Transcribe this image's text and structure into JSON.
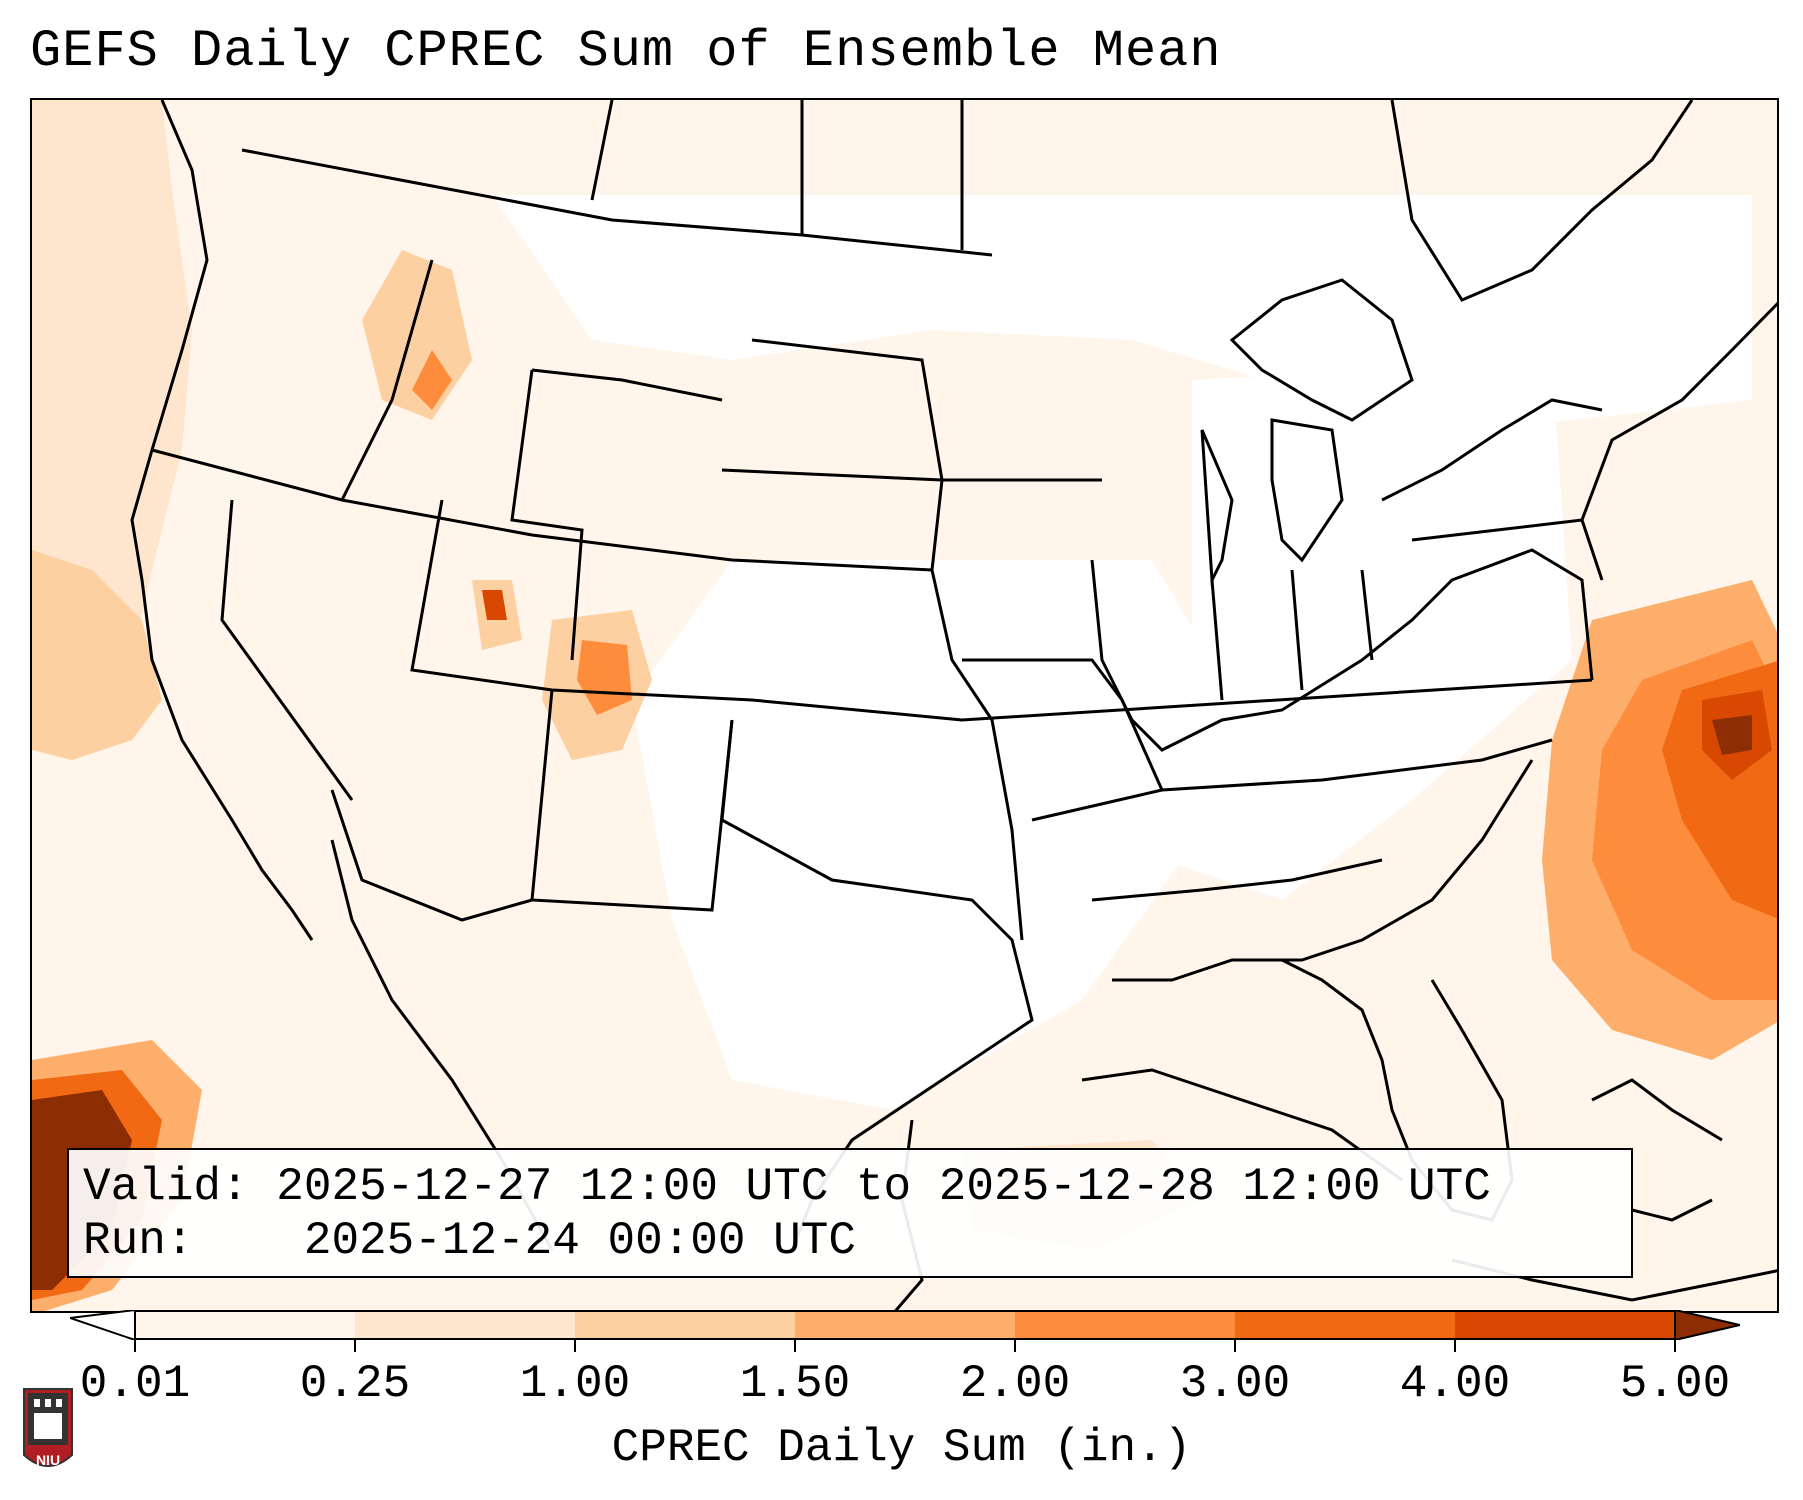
{
  "title": "GEFS Daily CPREC Sum of Ensemble Mean",
  "info": {
    "valid_label": "Valid:",
    "valid_value": "2025-12-27 12:00 UTC to 2025-12-28 12:00 UTC",
    "run_label": "Run:",
    "run_value": "2025-12-24 00:00 UTC"
  },
  "colorbar": {
    "label": "CPREC Daily Sum (in.)",
    "ticks": [
      "0.01",
      "0.25",
      "1.00",
      "1.50",
      "2.00",
      "3.00",
      "4.00",
      "5.00"
    ],
    "colors": [
      "#fff5eb",
      "#fee6ce",
      "#fdd0a2",
      "#fdae6b",
      "#fd8d3c",
      "#f16913",
      "#d94801",
      "#8c2d04"
    ]
  },
  "logo": {
    "text": "NIU",
    "name": "niu-logo"
  }
}
